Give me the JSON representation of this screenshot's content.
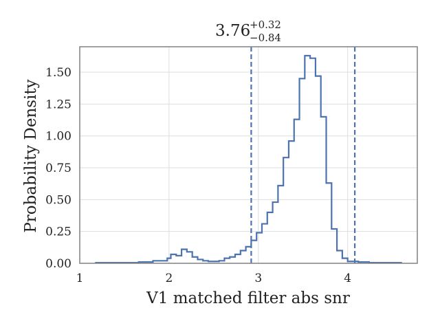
{
  "chart_data": {
    "type": "histogram-step",
    "title": {
      "median": "3.76",
      "upper": "+0.32",
      "lower": "−0.84"
    },
    "xlabel": "V1 matched filter abs snr",
    "ylabel": "Probability Density",
    "xlim": [
      1.0,
      4.78
    ],
    "ylim": [
      0.0,
      1.7
    ],
    "x_ticks": [
      1,
      2,
      3,
      4
    ],
    "x_tick_labels": [
      "1",
      "2",
      "3",
      "4"
    ],
    "y_ticks": [
      0.0,
      0.25,
      0.5,
      0.75,
      1.0,
      1.25,
      1.5
    ],
    "y_tick_labels": [
      "0.00",
      "0.25",
      "0.50",
      "0.75",
      "1.00",
      "1.25",
      "1.50"
    ],
    "grid": true,
    "series": [
      {
        "color": "#4c72b0",
        "bin_edges": [
          1.18,
          1.26,
          1.34,
          1.42,
          1.5,
          1.58,
          1.66,
          1.74,
          1.82,
          1.9,
          1.98,
          2.02,
          2.08,
          2.14,
          2.2,
          2.26,
          2.32,
          2.38,
          2.44,
          2.5,
          2.56,
          2.62,
          2.68,
          2.74,
          2.8,
          2.86,
          2.92,
          2.98,
          3.04,
          3.1,
          3.16,
          3.22,
          3.28,
          3.34,
          3.4,
          3.46,
          3.52,
          3.58,
          3.64,
          3.7,
          3.76,
          3.82,
          3.88,
          3.94,
          4.0,
          4.06,
          4.12,
          4.18,
          4.24,
          4.3,
          4.36,
          4.42,
          4.48,
          4.54,
          4.6
        ],
        "densities": [
          0.005,
          0.005,
          0.005,
          0.005,
          0.005,
          0.005,
          0.01,
          0.01,
          0.02,
          0.02,
          0.04,
          0.07,
          0.06,
          0.11,
          0.09,
          0.05,
          0.03,
          0.02,
          0.015,
          0.015,
          0.02,
          0.04,
          0.05,
          0.07,
          0.1,
          0.13,
          0.18,
          0.24,
          0.31,
          0.4,
          0.48,
          0.61,
          0.83,
          0.96,
          1.13,
          1.45,
          1.63,
          1.61,
          1.47,
          1.15,
          0.63,
          0.27,
          0.1,
          0.04,
          0.015,
          0.015,
          0.01,
          0.01,
          0.005,
          0.005,
          0.005,
          0.005,
          0.005,
          0.005
        ]
      }
    ],
    "vlines": [
      2.92,
      4.08
    ]
  }
}
